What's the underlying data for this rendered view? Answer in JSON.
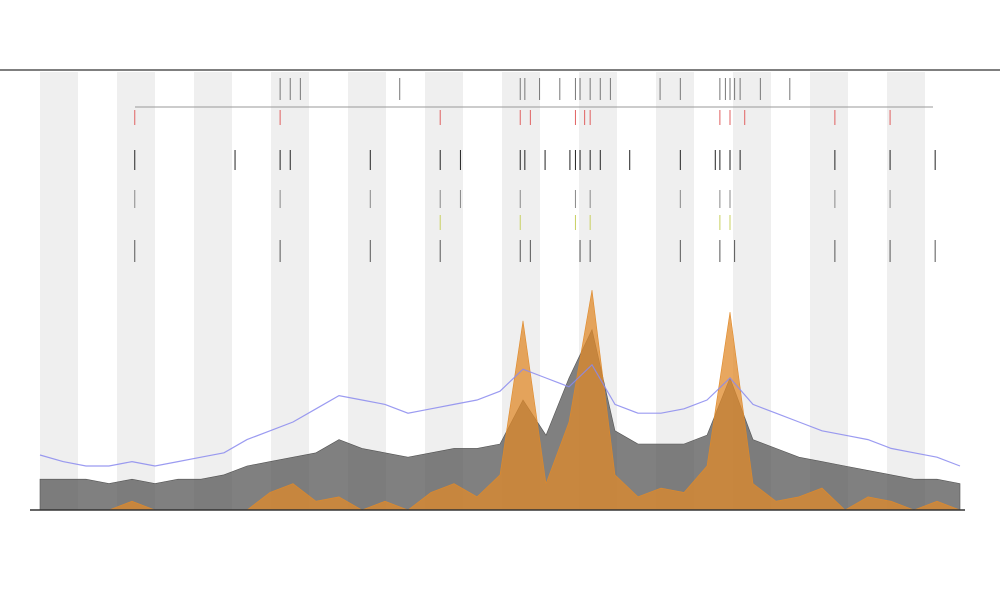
{
  "chart_data": [
    {
      "type": "signal",
      "x": [
        0,
        2.5,
        5,
        7.5,
        10,
        12.5,
        15,
        17.5,
        20,
        22.5,
        25,
        27.5,
        30,
        32.5,
        35,
        37.5,
        40,
        42.5,
        45,
        47.5,
        50,
        52.5,
        55,
        57.5,
        60,
        62.5,
        65,
        67.5,
        70,
        72.5,
        75,
        77.5,
        80,
        82.5,
        85,
        87.5,
        90,
        92.5,
        95,
        97.5,
        100
      ],
      "xlim": [
        0,
        100
      ],
      "ylim": [
        0,
        100
      ],
      "series": [
        {
          "kind": "area",
          "color": "#555555",
          "values": [
            7,
            7,
            7,
            6,
            7,
            6,
            7,
            7,
            8,
            10,
            11,
            12,
            13,
            16,
            14,
            13,
            12,
            13,
            14,
            14,
            15,
            25,
            17,
            30,
            41,
            18,
            15,
            15,
            15,
            17,
            30,
            16,
            14,
            12,
            11,
            10,
            9,
            8,
            7,
            7,
            6
          ]
        },
        {
          "kind": "area",
          "color": "#e08a2a",
          "values": [
            0,
            0,
            0,
            0,
            2,
            0,
            0,
            0,
            0,
            0,
            4,
            6,
            2,
            3,
            0,
            2,
            0,
            4,
            6,
            3,
            8,
            43,
            6,
            20,
            50,
            8,
            3,
            5,
            4,
            10,
            45,
            6,
            2,
            3,
            5,
            0,
            3,
            2,
            0,
            2,
            0
          ]
        },
        {
          "kind": "line",
          "color": "#8a8aee",
          "values": [
            12.5,
            11,
            10,
            10,
            11,
            10,
            11,
            12,
            13,
            16,
            18,
            20,
            23,
            26,
            25,
            24,
            22,
            23,
            24,
            25,
            27,
            32,
            30,
            28,
            33,
            24,
            22,
            22,
            23,
            25,
            30,
            24,
            22,
            20,
            18,
            17,
            16,
            14,
            13,
            12,
            10
          ]
        }
      ]
    },
    {
      "type": "rug",
      "xlim": [
        0,
        100
      ],
      "rows": [
        {
          "color": "#777777",
          "x": [
            26.1,
            27.2,
            28.3,
            39.1,
            52.2,
            52.7,
            54.3,
            56.5,
            58.2,
            58.7,
            59.8,
            60.9,
            62,
            67.4,
            69.6,
            73.9,
            74.5,
            75,
            75.5,
            76.1,
            78.3,
            81.5
          ]
        },
        {
          "color": "#e06060",
          "x": [
            10.3,
            26.1,
            43.5,
            52.2,
            53.3,
            58.2,
            59.2,
            59.8,
            73.9,
            75,
            76.6,
            86.4,
            92.4
          ]
        },
        {
          "color": "#222222",
          "x": [
            10.3,
            21.2,
            26.1,
            27.2,
            35.9,
            43.5,
            45.7,
            52.2,
            52.7,
            54.9,
            57.6,
            58.2,
            58.7,
            59.8,
            60.9,
            64.1,
            69.6,
            73.4,
            73.9,
            75,
            76.1,
            86.4,
            92.4,
            97.3
          ]
        },
        {
          "color": "#888888",
          "x": [
            10.3,
            26.1,
            35.9,
            43.5,
            45.7,
            52.2,
            58.2,
            59.8,
            69.6,
            73.9,
            75,
            86.4,
            92.4
          ]
        },
        {
          "color": "#c8d060",
          "x": [
            43.5,
            52.2,
            58.2,
            59.8,
            73.9,
            75
          ]
        },
        {
          "color": "#555555",
          "x": [
            10.3,
            26.1,
            35.9,
            43.5,
            52.2,
            53.3,
            58.7,
            59.8,
            69.6,
            73.9,
            75.5,
            86.4,
            92.4,
            97.3
          ]
        }
      ]
    }
  ]
}
